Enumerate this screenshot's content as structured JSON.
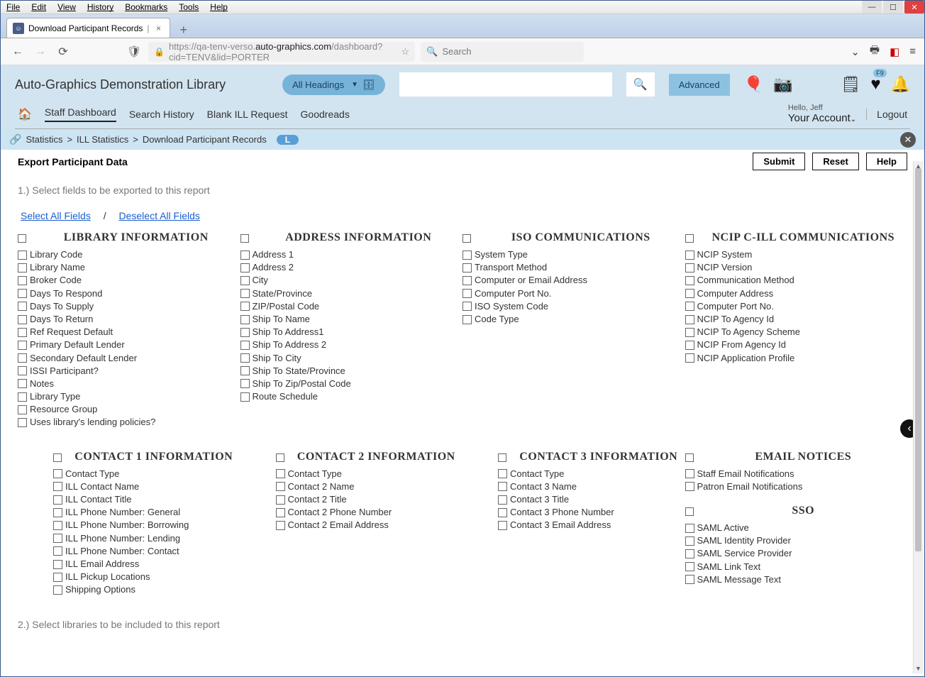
{
  "menu": {
    "items": [
      "File",
      "Edit",
      "View",
      "History",
      "Bookmarks",
      "Tools",
      "Help"
    ]
  },
  "tab": {
    "title": "Download Participant Records"
  },
  "url": {
    "prefix": "https://qa-tenv-verso.",
    "domain": "auto-graphics.com",
    "path": "/dashboard?cid=TENV&lid=PORTER"
  },
  "search_placeholder": "Search",
  "brand": "Auto-Graphics Demonstration Library",
  "heading_select": "All Headings",
  "advanced": "Advanced",
  "nav": {
    "items": [
      "Staff Dashboard",
      "Search History",
      "Blank ILL Request",
      "Goodreads"
    ],
    "greeting": "Hello, Jeff",
    "account": "Your Account",
    "logout": "Logout"
  },
  "f9": "F9",
  "breadcrumb": {
    "items": [
      "Statistics",
      "ILL Statistics",
      "Download Participant Records"
    ],
    "badge": "L"
  },
  "content": {
    "title": "Export Participant Data",
    "submit": "Submit",
    "reset": "Reset",
    "help": "Help",
    "step1": "1.) Select fields to be exported to this report",
    "step2": "2.) Select libraries to be included to this report",
    "select_all": "Select All Fields",
    "deselect_all": "Deselect All Fields"
  },
  "groups_row1": [
    {
      "title": "LIBRARY INFORMATION",
      "fields": [
        "Library Code",
        "Library Name",
        "Broker Code",
        "Days To Respond",
        "Days To Supply",
        "Days To Return",
        "Ref Request Default",
        "Primary Default Lender",
        "Secondary Default Lender",
        "ISSI Participant?",
        "Notes",
        "Library Type",
        "Resource Group",
        "Uses library's lending policies?"
      ]
    },
    {
      "title": "ADDRESS INFORMATION",
      "fields": [
        "Address 1",
        "Address 2",
        "City",
        "State/Province",
        "ZIP/Postal Code",
        "Ship To Name",
        "Ship To Address1",
        "Ship To Address 2",
        "Ship To City",
        "Ship To State/Province",
        "Ship To Zip/Postal Code",
        "Route Schedule"
      ]
    },
    {
      "title": "ISO COMMUNICATIONS",
      "fields": [
        "System Type",
        "Transport Method",
        "Computer or Email Address",
        "Computer Port No.",
        "ISO System Code",
        "Code Type"
      ]
    },
    {
      "title": "NCIP C-ILL COMMUNICATIONS",
      "fields": [
        "NCIP System",
        "NCIP Version",
        "Communication Method",
        "Computer Address",
        "Computer Port No.",
        "NCIP To Agency Id",
        "NCIP To Agency Scheme",
        "NCIP From Agency Id",
        "NCIP Application Profile"
      ]
    }
  ],
  "groups_row2": [
    {
      "title": "CONTACT 1 INFORMATION",
      "fields": [
        "Contact Type",
        "ILL Contact Name",
        "ILL Contact Title",
        "ILL Phone Number: General",
        "ILL Phone Number: Borrowing",
        "ILL Phone Number: Lending",
        "ILL Phone Number: Contact",
        "ILL Email Address",
        "ILL Pickup Locations",
        "Shipping Options"
      ]
    },
    {
      "title": "CONTACT 2 INFORMATION",
      "fields": [
        "Contact Type",
        "Contact 2 Name",
        "Contact 2 Title",
        "Contact 2 Phone Number",
        "Contact 2 Email Address"
      ]
    },
    {
      "title": "CONTACT 3 INFORMATION",
      "fields": [
        "Contact Type",
        "Contact 3 Name",
        "Contact 3 Title",
        "Contact 3 Phone Number",
        "Contact 3 Email Address"
      ]
    }
  ],
  "groups_row2_side": [
    {
      "title": "EMAIL NOTICES",
      "fields": [
        "Staff Email Notifications",
        "Patron Email Notifications"
      ]
    },
    {
      "title": "SSO",
      "fields": [
        "SAML Active",
        "SAML Identity Provider",
        "SAML Service Provider",
        "SAML Link Text",
        "SAML Message Text"
      ]
    }
  ]
}
